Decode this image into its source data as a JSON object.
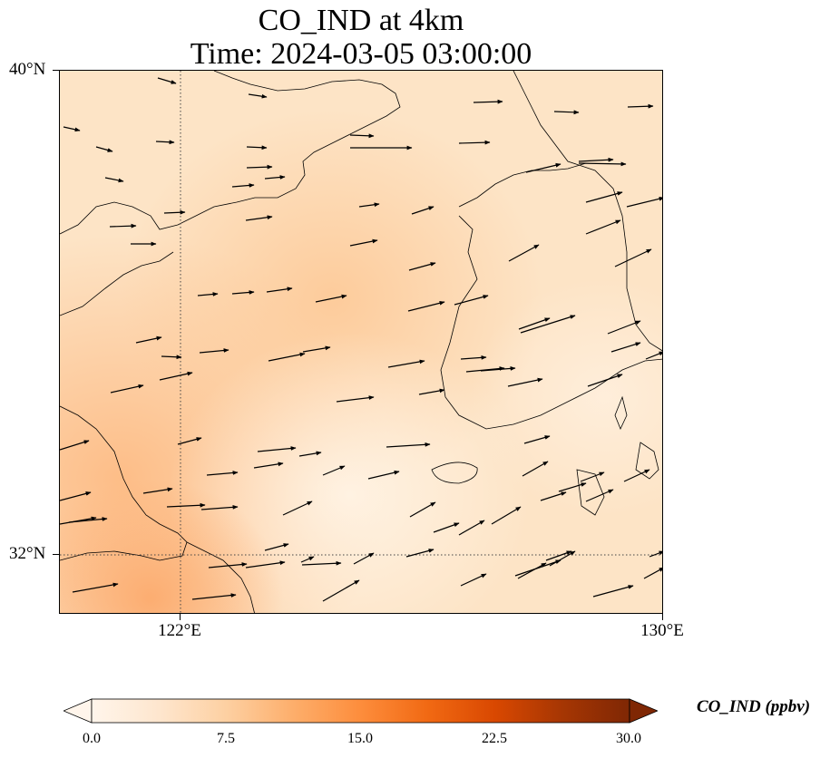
{
  "title": {
    "line1": "CO_IND at 4km",
    "line2": "Time: 2024-03-05 03:00:00"
  },
  "map": {
    "lat_range": [
      31,
      40
    ],
    "lon_range": [
      120,
      130
    ],
    "y_ticks": [
      {
        "value": 40,
        "label": "40°N"
      },
      {
        "value": 32,
        "label": "32°N"
      }
    ],
    "x_ticks": [
      {
        "value": 122,
        "label": "122°E"
      },
      {
        "value": 130,
        "label": "130°E"
      }
    ],
    "gridlines": [
      {
        "type": "lon",
        "value": 122
      },
      {
        "type": "lat",
        "value": 32
      }
    ],
    "gridline_style": "dotted",
    "field_description_colors": {
      "low": "#fff5eb",
      "mid": "#fdd0a2",
      "high": "#fdae6b"
    },
    "coastline_color": "#000000"
  },
  "colorbar": {
    "label": "CO_IND (ppbv)",
    "min": 0.0,
    "max": 30.0,
    "extend": "both",
    "ticks": [
      "0.0",
      "7.5",
      "15.0",
      "22.5",
      "30.0"
    ],
    "colormap_stops": [
      "#fff5eb",
      "#fee6ce",
      "#fdd0a2",
      "#fdae6b",
      "#fd8d3c",
      "#f16913",
      "#d94801",
      "#a63603",
      "#7f2704"
    ]
  }
}
